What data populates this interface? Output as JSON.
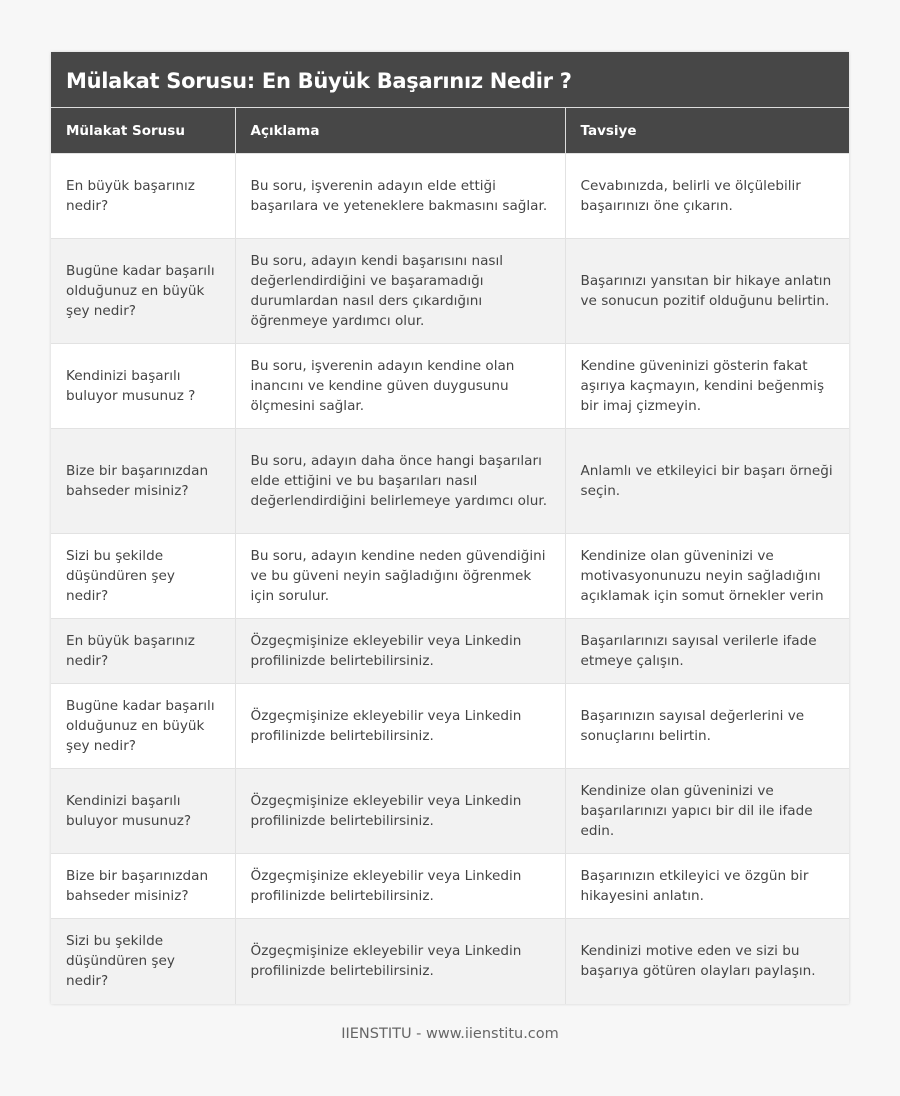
{
  "title": "Mülakat Sorusu: En Büyük Başarınız Nedir ?",
  "columns": [
    "Mülakat Sorusu",
    "Açıklama",
    "Tavsiye"
  ],
  "rows": [
    [
      "En büyük başarınız nedir?",
      "Bu soru, işverenin adayın elde ettiği başarılara ve yeteneklere bakmasını sağlar.",
      "Cevabınızda, belirli ve ölçülebilir başaırınızı öne çıkarın."
    ],
    [
      "Bugüne kadar başarılı olduğunuz en büyük şey nedir?",
      "Bu soru, adayın kendi başarısını nasıl değerlendirdiğini ve başaramadığı durumlardan nasıl ders çıkardığını öğrenmeye yardımcı olur.",
      "Başarınızı yansıtan bir hikaye anlatın ve sonucun pozitif olduğunu belirtin."
    ],
    [
      "Kendinizi başarılı buluyor musunuz ?",
      "Bu soru, işverenin adayın kendine olan inancını ve kendine güven duygusunu ölçmesini sağlar.",
      "Kendine güveninizi gösterin fakat aşırıya kaçmayın, kendini beğenmiş bir imaj çizmeyin."
    ],
    [
      "Bize bir başarınızdan bahseder misiniz?",
      "Bu soru, adayın daha önce hangi başarıları elde ettiğini ve bu başarıları nasıl değerlendirdiğini belirlemeye yardımcı olur.",
      "Anlamlı ve etkileyici bir başarı örneği seçin."
    ],
    [
      "Sizi bu şekilde düşündüren şey nedir?",
      "Bu soru, adayın kendine neden güvendiğini ve bu güveni neyin sağladığını öğrenmek için sorulur.",
      "Kendinize olan güveninizi ve motivasyonunuzu neyin sağladığını açıklamak için somut örnekler verin"
    ],
    [
      "En büyük başarınız nedir?",
      "Özgeçmişinize ekleyebilir veya Linkedin profilinizde belirtebilirsiniz.",
      "Başarılarınızı sayısal verilerle ifade etmeye çalışın."
    ],
    [
      "Bugüne kadar başarılı olduğunuz en büyük şey nedir?",
      "Özgeçmişinize ekleyebilir veya Linkedin profilinizde belirtebilirsiniz.",
      "Başarınızın sayısal değerlerini ve sonuçlarını belirtin."
    ],
    [
      "Kendinizi başarılı buluyor musunuz?",
      "Özgeçmişinize ekleyebilir veya Linkedin profilinizde belirtebilirsiniz.",
      "Kendinize olan güveninizi ve başarılarınızı yapıcı bir dil ile ifade edin."
    ],
    [
      "Bize bir başarınızdan bahseder misiniz?",
      "Özgeçmişinize ekleyebilir veya Linkedin profilinizde belirtebilirsiniz.",
      "Başarınızın etkileyici ve özgün bir hikayesini anlatın."
    ],
    [
      "Sizi bu şekilde düşündüren şey nedir?",
      "Özgeçmişinize ekleyebilir veya Linkedin profilinizde belirtebilirsiniz.",
      "Kendinizi motive eden ve sizi bu başarıya götüren olayları paylaşın."
    ]
  ],
  "footer": "IIENSTITU - www.iienstitu.com"
}
